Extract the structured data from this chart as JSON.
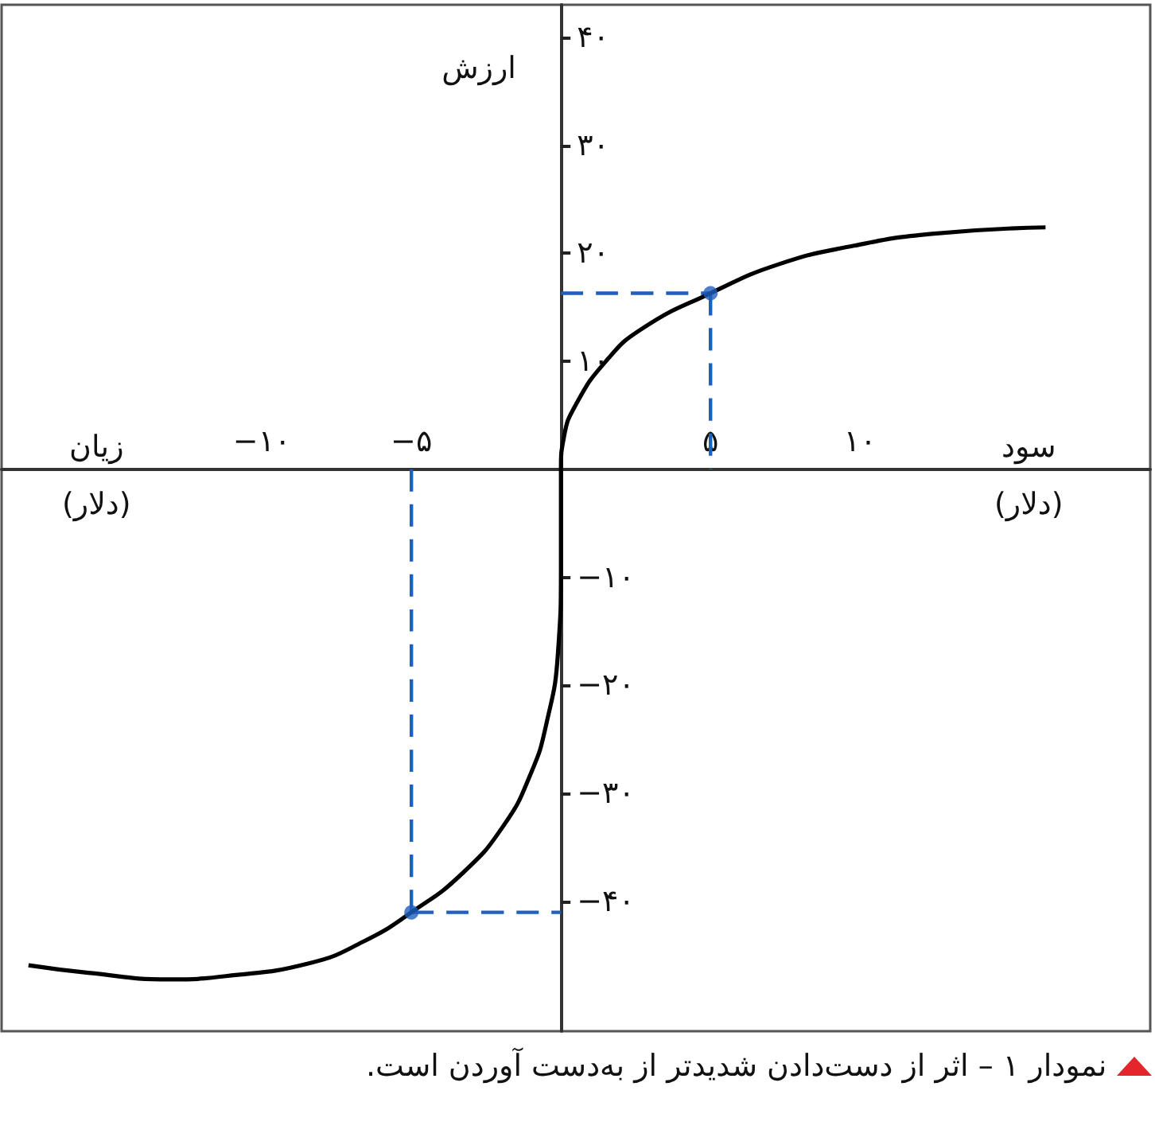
{
  "chart_data": {
    "type": "line",
    "xlabel": "سود (دلار)",
    "ylabel": "ارزش",
    "annotations": [
      "زیان (دلار)",
      "نمودار ۱ – اثر از دست‌دادن شدیدتر از به‌دست آوردن است."
    ],
    "xlim": [
      -18.7,
      19.7
    ],
    "ylim": [
      -52,
      43
    ],
    "xticks": [
      {
        "value": -10,
        "label": "−۱۰"
      },
      {
        "value": -5,
        "label": "−۵"
      },
      {
        "value": 5,
        "label": "۵"
      },
      {
        "value": 10,
        "label": "۱۰"
      }
    ],
    "yticks": [
      {
        "value": -40,
        "label": "−۴۰"
      },
      {
        "value": -30,
        "label": "−۳۰"
      },
      {
        "value": -20,
        "label": "−۲۰"
      },
      {
        "value": -10,
        "label": "−۱۰"
      },
      {
        "value": 10,
        "label": "۱۰"
      },
      {
        "value": 20,
        "label": "۲۰"
      },
      {
        "value": 30,
        "label": "۳۰"
      },
      {
        "value": 40,
        "label": "۴۰"
      }
    ],
    "series": [
      {
        "color": "#000000",
        "marker": "none",
        "line_style": "solid",
        "x": [
          -17.8,
          -15.8,
          -13.1,
          -11.2,
          -8.4,
          -6.6,
          -5,
          -3.3,
          -1.9,
          -1,
          -0.5,
          -0.1,
          0,
          0,
          0.1,
          0.5,
          1.5,
          2.7,
          5,
          7.3,
          9.8,
          12.4,
          16.2
        ],
        "values": [
          -45.9,
          -46.6,
          -47.2,
          -46.9,
          -45.7,
          -43.7,
          -41,
          -37.4,
          -32.9,
          -28.1,
          -23.7,
          -17,
          -9,
          0,
          3,
          6,
          10,
          13,
          16.3,
          19,
          20.7,
          21.8,
          22.4
        ]
      },
      {
        "color": "#1f5fbf",
        "marker": "none",
        "line_style": "dashed",
        "x": [
          0,
          5
        ],
        "values": [
          16.3,
          16.3
        ]
      },
      {
        "color": "#1f5fbf",
        "marker": "none",
        "line_style": "dashed",
        "x": [
          5,
          5
        ],
        "values": [
          16.3,
          0
        ]
      },
      {
        "color": "#1f5fbf",
        "marker": "none",
        "line_style": "dashed",
        "x": [
          -5,
          -5
        ],
        "values": [
          0,
          -41
        ]
      },
      {
        "color": "#1f5fbf",
        "marker": "none",
        "line_style": "dashed",
        "x": [
          -5,
          0
        ],
        "values": [
          -41,
          -41
        ]
      },
      {
        "type": "scatter",
        "color": "#1f5fbf",
        "marker": "circle",
        "x": [
          5,
          -5
        ],
        "values": [
          16.3,
          -41
        ]
      }
    ]
  }
}
